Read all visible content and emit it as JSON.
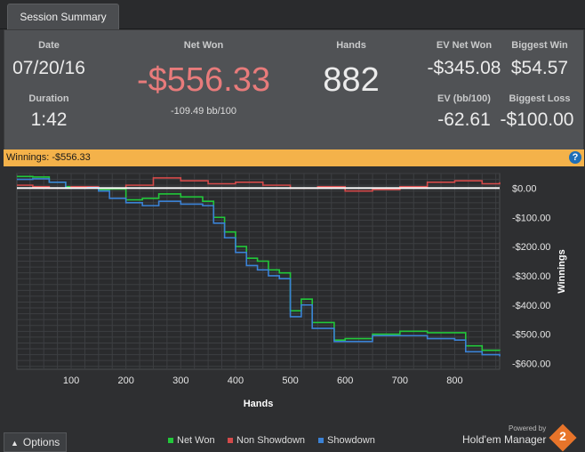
{
  "tab": {
    "label": "Session Summary"
  },
  "stats": {
    "date": {
      "label": "Date",
      "value": "07/20/16"
    },
    "duration": {
      "label": "Duration",
      "value": "1:42"
    },
    "net_won": {
      "label": "Net Won",
      "value": "-$556.33",
      "sub": "-109.49 bb/100"
    },
    "hands": {
      "label": "Hands",
      "value": "882"
    },
    "ev_net_won": {
      "label": "EV Net Won",
      "value": "-$345.08"
    },
    "ev_bb100": {
      "label": "EV (bb/100)",
      "value": "-62.61"
    },
    "biggest_win": {
      "label": "Biggest Win",
      "value": "$54.57"
    },
    "biggest_loss": {
      "label": "Biggest Loss",
      "value": "-$100.00"
    }
  },
  "winnings_bar": {
    "text": "Winnings: -$556.33",
    "help": "?"
  },
  "colors": {
    "net_won": "#22c83a",
    "non_showdown": "#d44a4a",
    "showdown": "#3b82d6",
    "accent": "#f4b24a",
    "negative": "#e87b7b"
  },
  "chart_data": {
    "type": "line",
    "xlabel": "Hands",
    "ylabel": "Winnings",
    "xlim": [
      1,
      882
    ],
    "ylim": [
      -620,
      50
    ],
    "x_ticks": [
      100,
      200,
      300,
      400,
      500,
      600,
      700,
      800
    ],
    "x_tick_labels": [
      "100",
      "200",
      "300",
      "400",
      "500",
      "600",
      "700",
      "800"
    ],
    "y_ticks": [
      0,
      -100,
      -200,
      -300,
      -400,
      -500,
      -600
    ],
    "y_tick_labels": [
      "$0.00",
      "-$100.00",
      "-$200.00",
      "-$300.00",
      "-$400.00",
      "-$500.00",
      "-$600.00"
    ],
    "grid": true,
    "legend_position": "bottom",
    "zero_line": true,
    "series": [
      {
        "name": "Net Won",
        "color": "#22c83a",
        "x": [
          1,
          30,
          60,
          90,
          130,
          150,
          170,
          200,
          230,
          260,
          300,
          340,
          360,
          380,
          400,
          420,
          440,
          460,
          480,
          500,
          520,
          540,
          560,
          580,
          600,
          650,
          700,
          750,
          800,
          820,
          850,
          882
        ],
        "y": [
          40,
          38,
          20,
          5,
          2,
          -5,
          -3,
          -40,
          -35,
          -20,
          -30,
          -45,
          -100,
          -150,
          -200,
          -240,
          -250,
          -280,
          -290,
          -420,
          -380,
          -460,
          -460,
          -520,
          -515,
          -500,
          -490,
          -495,
          -495,
          -540,
          -555,
          -556
        ]
      },
      {
        "name": "Non Showdown",
        "color": "#d44a4a",
        "x": [
          1,
          30,
          60,
          100,
          150,
          200,
          250,
          300,
          350,
          400,
          450,
          500,
          550,
          600,
          650,
          700,
          750,
          800,
          850,
          882
        ],
        "y": [
          10,
          5,
          0,
          5,
          0,
          10,
          35,
          25,
          15,
          20,
          10,
          0,
          5,
          -10,
          -5,
          5,
          20,
          25,
          15,
          20
        ]
      },
      {
        "name": "Showdown",
        "color": "#3b82d6",
        "x": [
          1,
          30,
          60,
          90,
          130,
          150,
          170,
          200,
          230,
          260,
          300,
          340,
          360,
          380,
          400,
          420,
          440,
          460,
          480,
          500,
          520,
          540,
          560,
          580,
          600,
          650,
          700,
          750,
          800,
          820,
          850,
          882
        ],
        "y": [
          30,
          32,
          20,
          0,
          2,
          -10,
          -35,
          -50,
          -60,
          -45,
          -55,
          -60,
          -120,
          -170,
          -220,
          -265,
          -280,
          -300,
          -310,
          -440,
          -400,
          -480,
          -480,
          -525,
          -525,
          -505,
          -505,
          -515,
          -520,
          -560,
          -570,
          -576
        ]
      }
    ]
  },
  "options": {
    "label": "Options"
  },
  "legend": [
    {
      "label": "Net Won",
      "color": "#22c83a"
    },
    {
      "label": "Non Showdown",
      "color": "#d44a4a"
    },
    {
      "label": "Showdown",
      "color": "#3b82d6"
    }
  ],
  "branding": {
    "powered_by": "Powered by",
    "name": "Hold'em Manager",
    "logo_text": "2"
  }
}
